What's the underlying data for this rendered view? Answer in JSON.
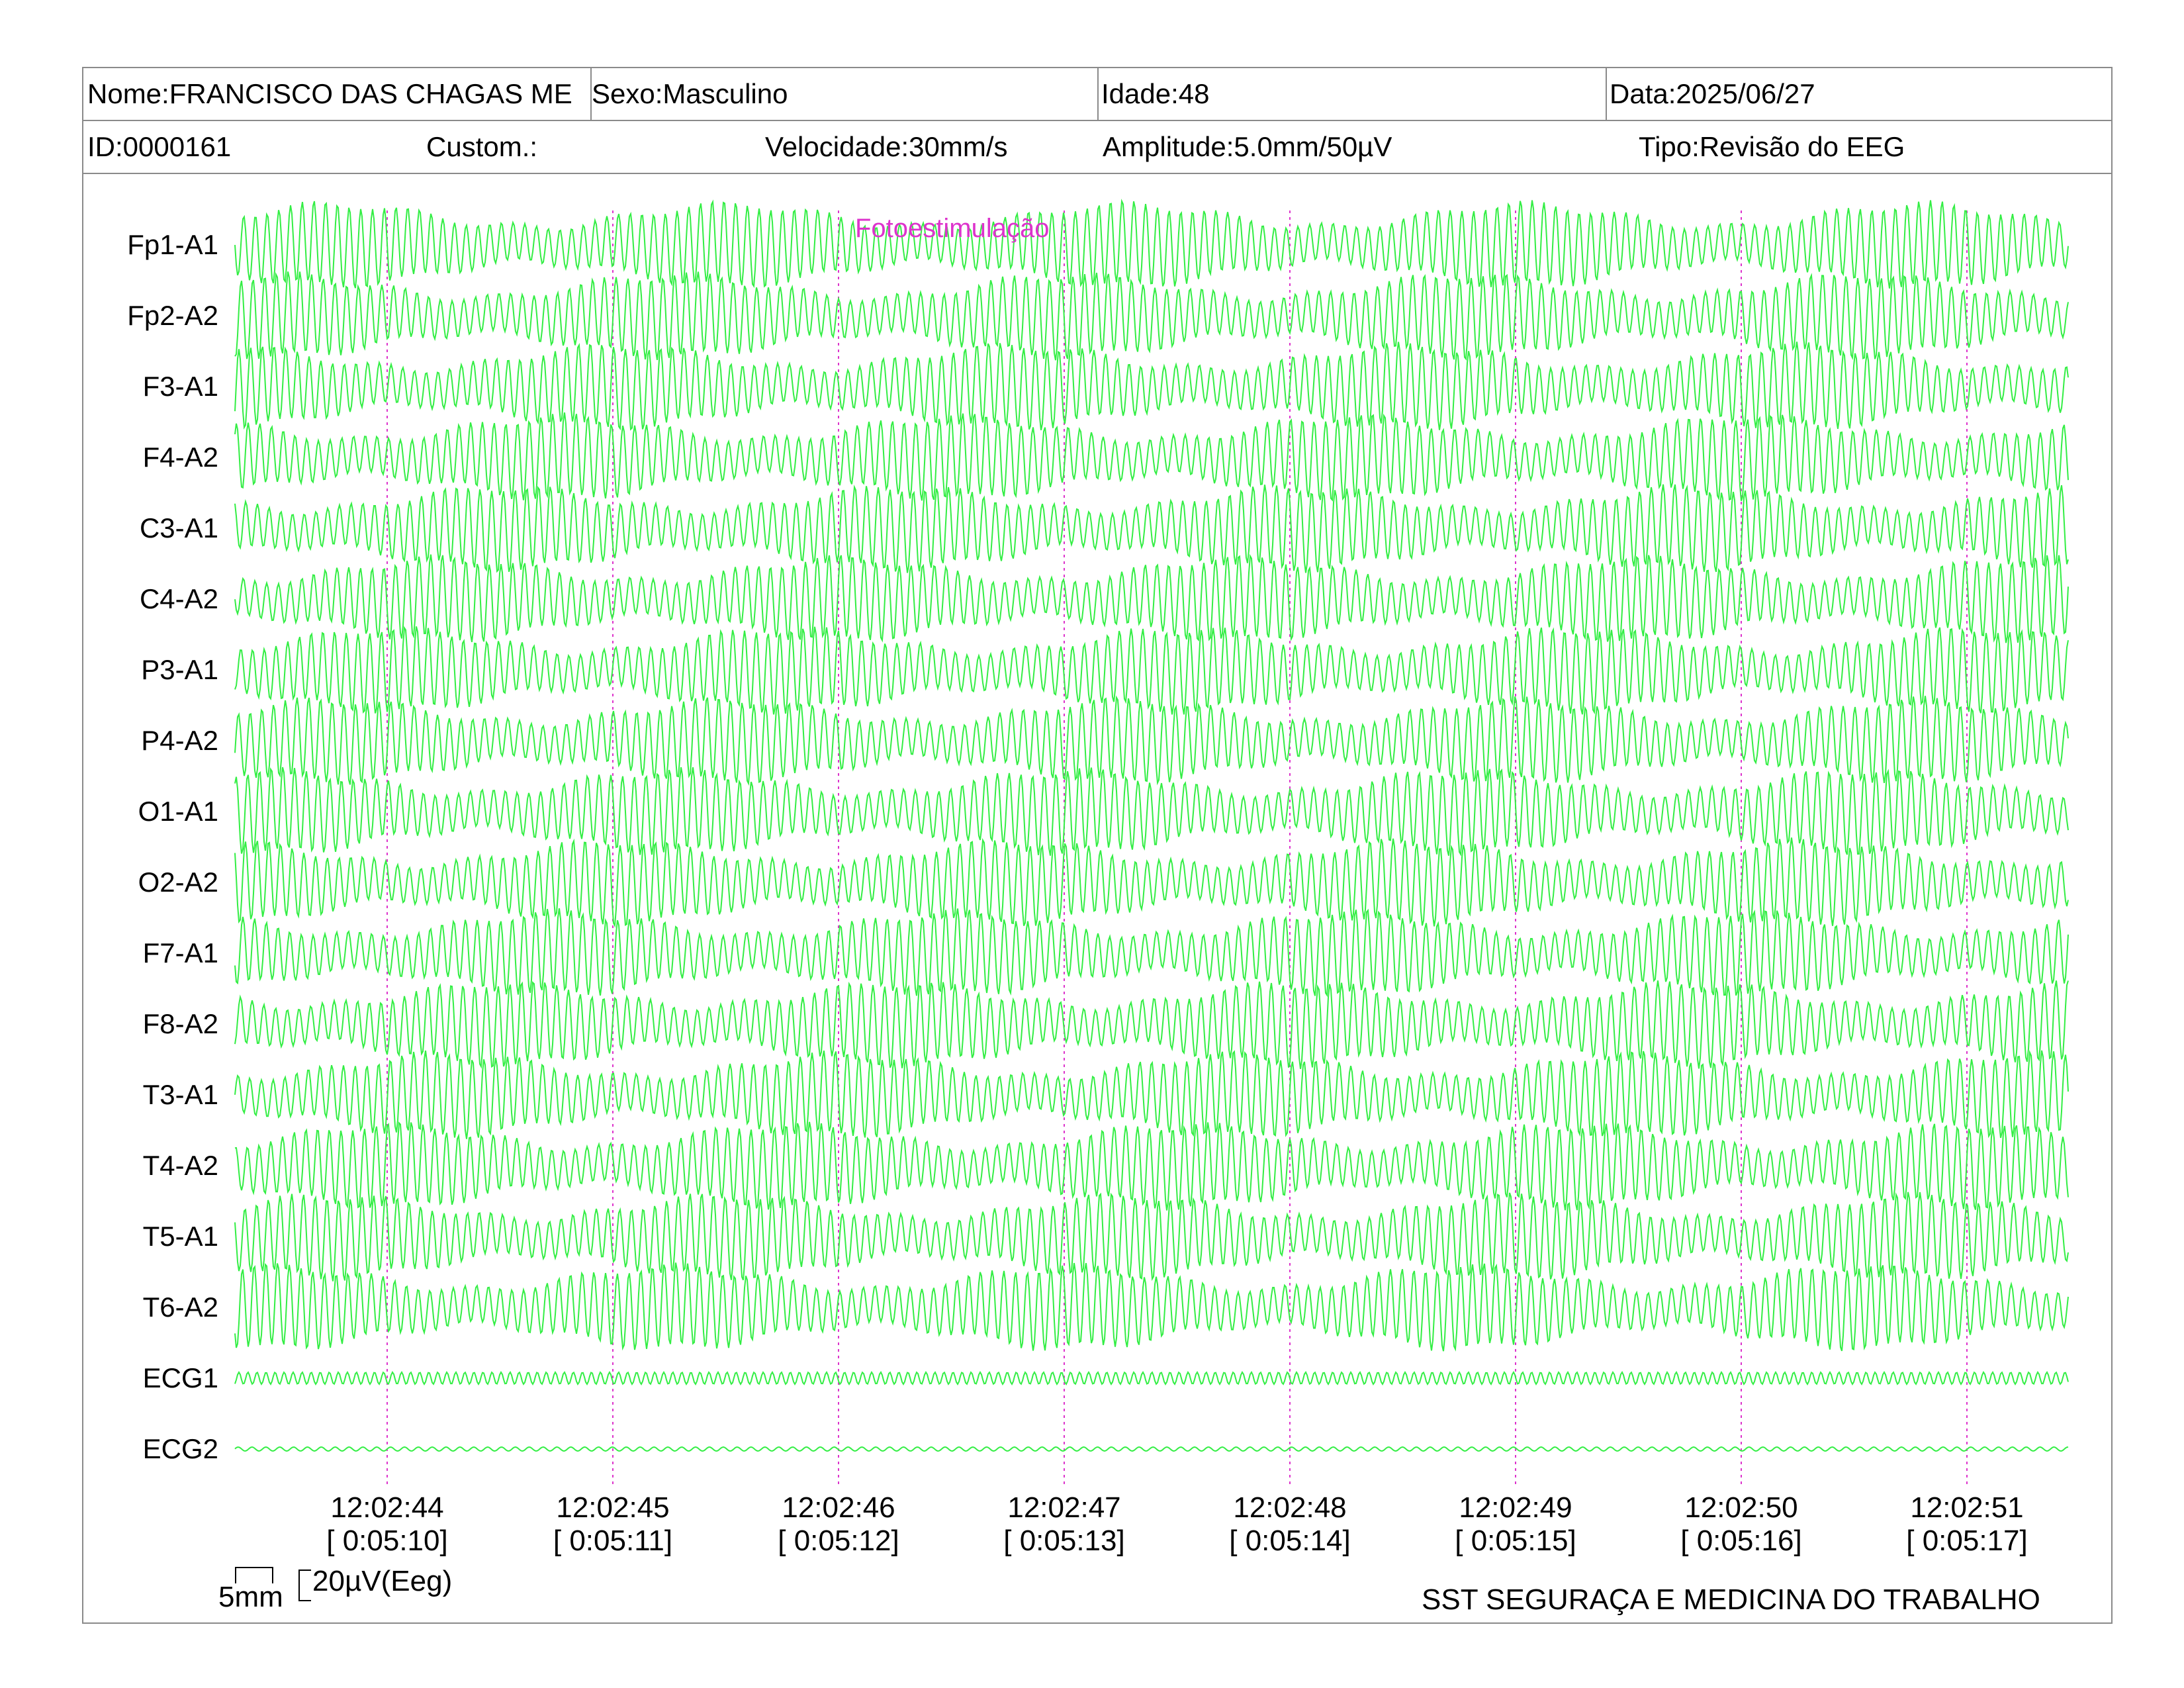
{
  "header": {
    "nome": "Nome:FRANCISCO DAS CHAGAS ME",
    "sexo": "Sexo:Masculino",
    "idade": "Idade:48",
    "data": "Data:2025/06/27",
    "id": "ID:0000161",
    "custom": "Custom.:",
    "velocidade": "Velocidade:30mm/s",
    "amplitude": "Amplitude:5.0mm/50µV",
    "tipo": "Tipo:Revisão do EEG"
  },
  "annotation": "Fotoestimulação",
  "colors": {
    "trace": "#33ee44",
    "marker": "#dd33cc",
    "border": "#8a8a8a"
  },
  "chart_data": {
    "type": "line",
    "channels": [
      "Fp1-A1",
      "Fp2-A2",
      "F3-A1",
      "F4-A2",
      "C3-A1",
      "C4-A2",
      "P3-A1",
      "P4-A2",
      "O1-A1",
      "O2-A2",
      "F7-A1",
      "F8-A2",
      "T3-A1",
      "T4-A2",
      "T5-A1",
      "T6-A2",
      "ECG1",
      "ECG2"
    ],
    "time_marks": [
      {
        "clock": "12:02:44",
        "elapsed": "[ 0:05:10]"
      },
      {
        "clock": "12:02:45",
        "elapsed": "[ 0:05:11]"
      },
      {
        "clock": "12:02:46",
        "elapsed": "[ 0:05:12]"
      },
      {
        "clock": "12:02:47",
        "elapsed": "[ 0:05:13]"
      },
      {
        "clock": "12:02:48",
        "elapsed": "[ 0:05:14]"
      },
      {
        "clock": "12:02:49",
        "elapsed": "[ 0:05:15]"
      },
      {
        "clock": "12:02:50",
        "elapsed": "[ 0:05:16]"
      },
      {
        "clock": "12:02:51",
        "elapsed": "[ 0:05:17]"
      }
    ]
  },
  "scale": {
    "time": "5mm",
    "amplitude": "20µV(Eeg)"
  },
  "footer": "SST SEGURAÇA E MEDICINA DO TRABALHO"
}
